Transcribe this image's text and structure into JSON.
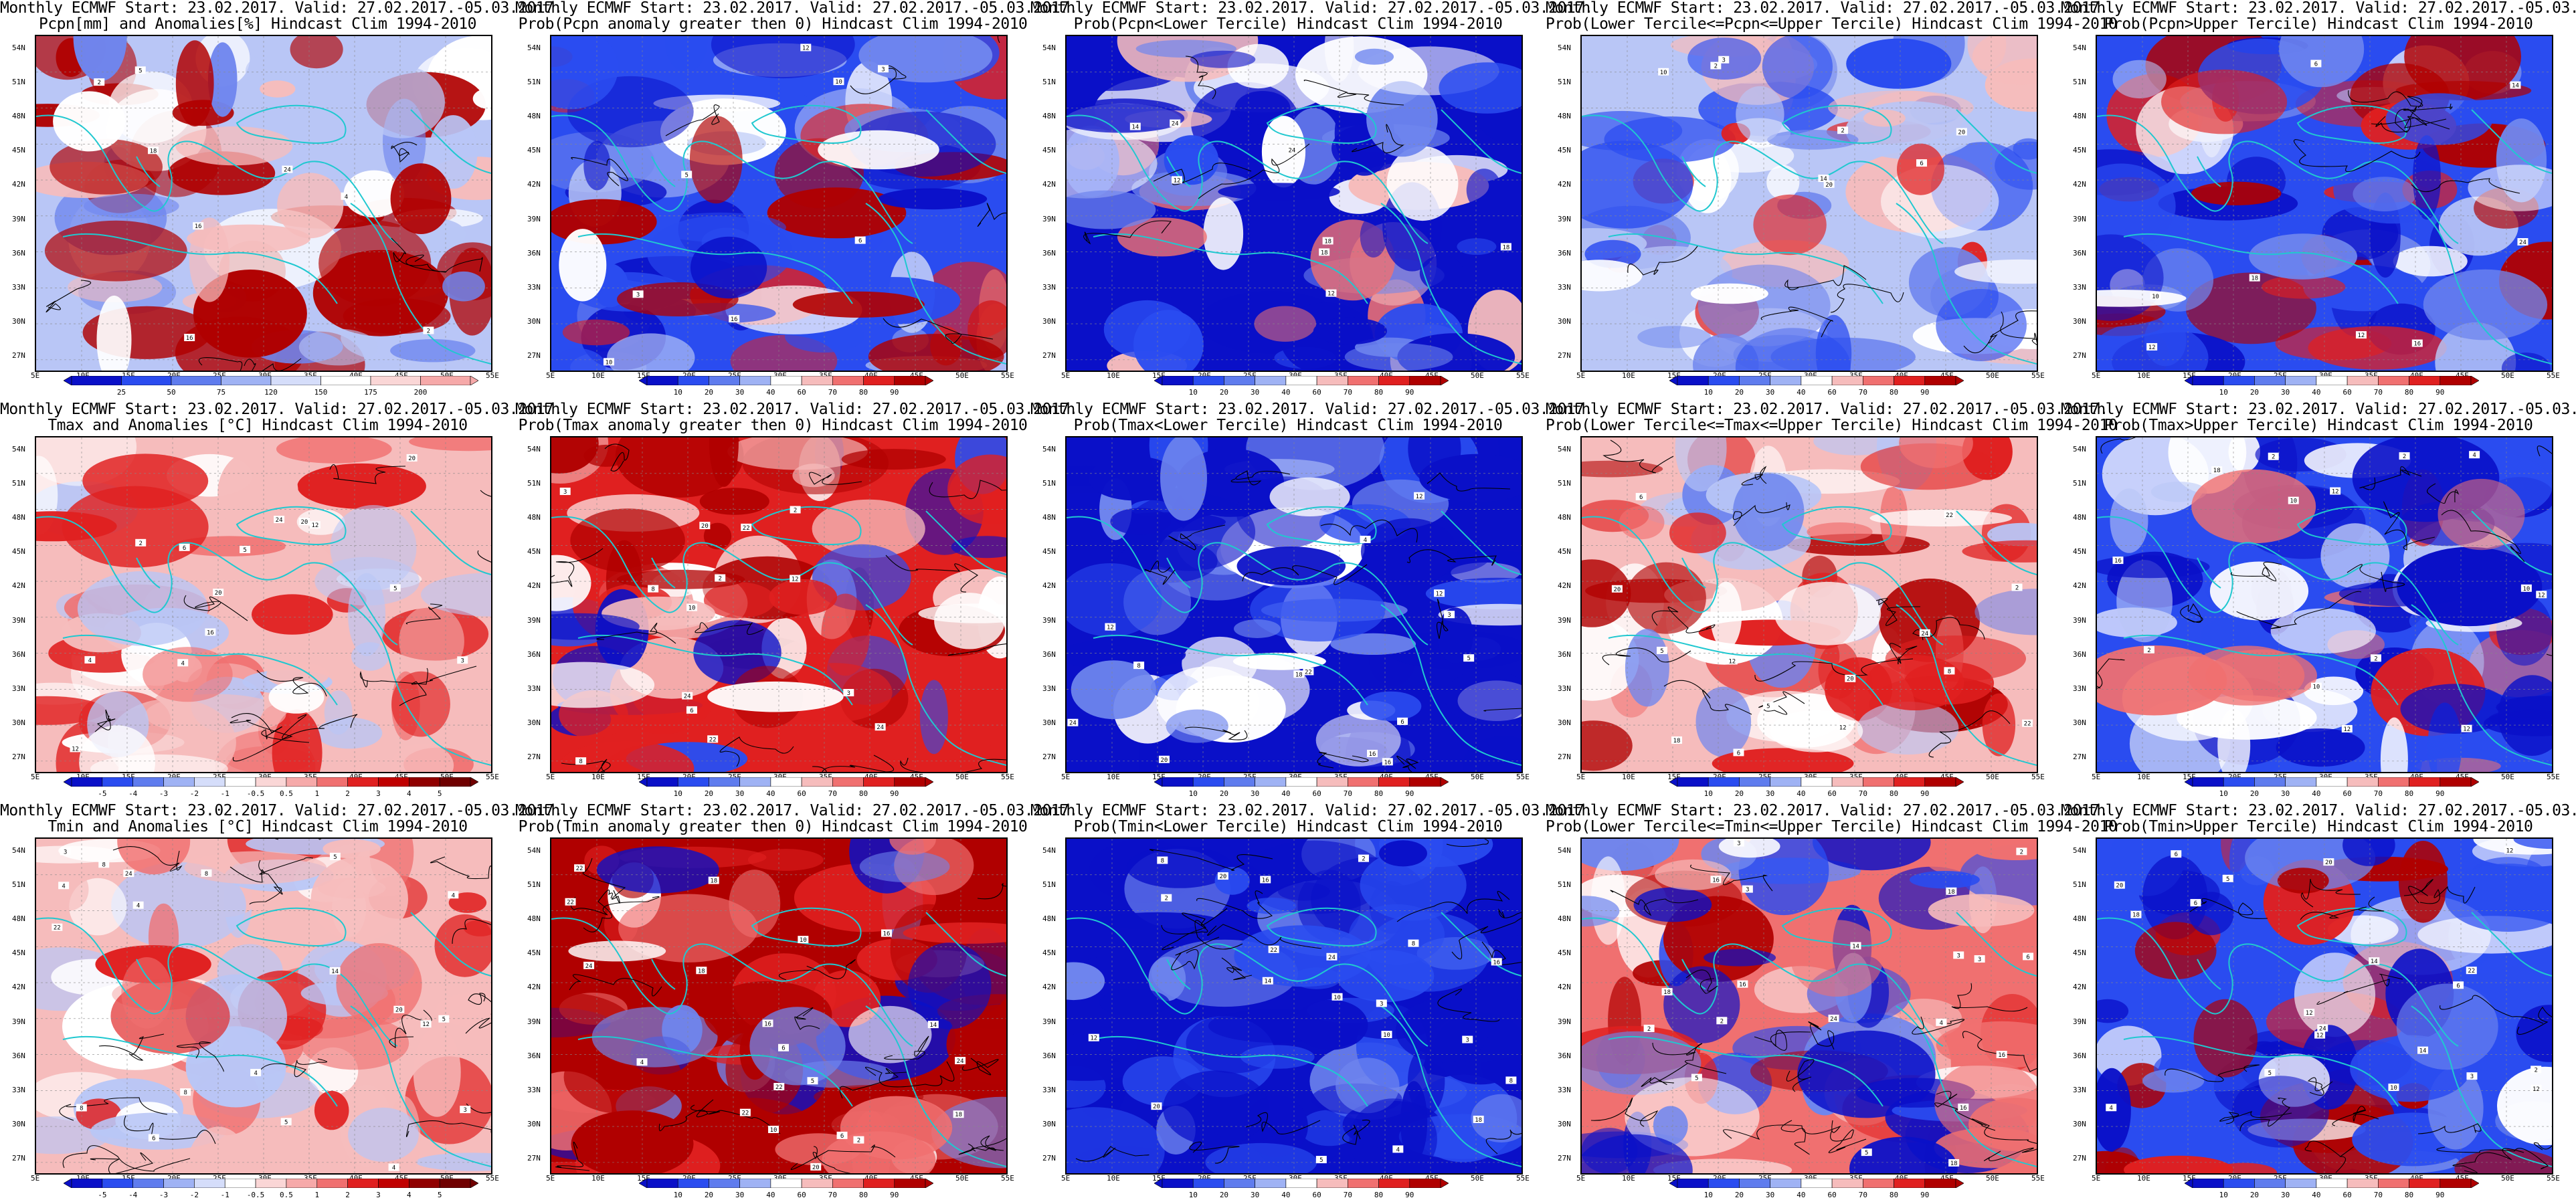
{
  "header_line": "Monthly ECMWF Start: 23.02.2017. Valid: 27.02.2017.-05.03.2017.",
  "lat_labels": [
    "54N",
    "51N",
    "48N",
    "45N",
    "42N",
    "39N",
    "36N",
    "33N",
    "30N",
    "27N"
  ],
  "lon_labels": [
    "5E",
    "10E",
    "15E",
    "20E",
    "25E",
    "30E",
    "35E",
    "40E",
    "45E",
    "50E",
    "55E"
  ],
  "colors": {
    "deep_blue": "#0a10c8",
    "blue": "#2a4cf0",
    "mid_blue": "#6f86ee",
    "light_blue": "#b9c6f6",
    "white": "#ffffff",
    "light_red": "#f6bcbc",
    "mid_red": "#f07070",
    "red": "#e02020",
    "dark_red": "#b00000",
    "coast": "#20c8d0",
    "contour": "#000000"
  },
  "rows": [
    {
      "variable": "Pcpn",
      "panels": [
        {
          "subtitle": "Pcpn[mm] and Anomalies[%] Hindcast Clim 1994-2010",
          "colorbar": [
            "25",
            "50",
            "75",
            "120",
            "150",
            "175",
            "200"
          ],
          "colorbar_kind": "anomaly"
        },
        {
          "subtitle": "Prob(Pcpn anomaly greater then 0) Hindcast Clim 1994-2010",
          "colorbar": [
            "10",
            "20",
            "30",
            "40",
            "60",
            "70",
            "80",
            "90"
          ],
          "colorbar_kind": "prob"
        },
        {
          "subtitle": "Prob(Pcpn<Lower Tercile) Hindcast Clim 1994-2010",
          "colorbar": [
            "10",
            "20",
            "30",
            "40",
            "60",
            "70",
            "80",
            "90"
          ],
          "colorbar_kind": "prob"
        },
        {
          "subtitle": "Prob(Lower Tercile<=Pcpn<=Upper Tercile) Hindcast Clim 1994-2010",
          "colorbar": [
            "10",
            "20",
            "30",
            "40",
            "60",
            "70",
            "80",
            "90"
          ],
          "colorbar_kind": "prob"
        },
        {
          "subtitle": "Prob(Pcpn>Upper Tercile) Hindcast Clim 1994-2010",
          "colorbar": [
            "10",
            "20",
            "30",
            "40",
            "60",
            "70",
            "80",
            "90"
          ],
          "colorbar_kind": "prob"
        }
      ]
    },
    {
      "variable": "Tmax",
      "panels": [
        {
          "subtitle": "Tmax and Anomalies [°C] Hindcast Clim 1994-2010",
          "colorbar": [
            "-5",
            "-4",
            "-3",
            "-2",
            "-1",
            "-0.5",
            "0.5",
            "1",
            "2",
            "3",
            "4",
            "5"
          ],
          "colorbar_kind": "anomaly"
        },
        {
          "subtitle": "Prob(Tmax anomaly greater then 0) Hindcast Clim 1994-2010",
          "colorbar": [
            "10",
            "20",
            "30",
            "40",
            "60",
            "70",
            "80",
            "90"
          ],
          "colorbar_kind": "prob"
        },
        {
          "subtitle": "Prob(Tmax<Lower Tercile) Hindcast Clim 1994-2010",
          "colorbar": [
            "10",
            "20",
            "30",
            "40",
            "60",
            "70",
            "80",
            "90"
          ],
          "colorbar_kind": "prob"
        },
        {
          "subtitle": "Prob(Lower Tercile<=Tmax<=Upper Tercile) Hindcast Clim 1994-2010",
          "colorbar": [
            "10",
            "20",
            "30",
            "40",
            "60",
            "70",
            "80",
            "90"
          ],
          "colorbar_kind": "prob"
        },
        {
          "subtitle": "Prob(Tmax>Upper Tercile) Hindcast Clim 1994-2010",
          "colorbar": [
            "10",
            "20",
            "30",
            "40",
            "60",
            "70",
            "80",
            "90"
          ],
          "colorbar_kind": "prob"
        }
      ]
    },
    {
      "variable": "Tmin",
      "panels": [
        {
          "subtitle": "Tmin and Anomalies [°C] Hindcast Clim 1994-2010",
          "colorbar": [
            "-5",
            "-4",
            "-3",
            "-2",
            "-1",
            "-0.5",
            "0.5",
            "1",
            "2",
            "3",
            "4",
            "5"
          ],
          "colorbar_kind": "anomaly"
        },
        {
          "subtitle": "Prob(Tmin anomaly greater then 0) Hindcast Clim 1994-2010",
          "colorbar": [
            "10",
            "20",
            "30",
            "40",
            "60",
            "70",
            "80",
            "90"
          ],
          "colorbar_kind": "prob"
        },
        {
          "subtitle": "Prob(Tmin<Lower Tercile) Hindcast Clim 1994-2010",
          "colorbar": [
            "10",
            "20",
            "30",
            "40",
            "60",
            "70",
            "80",
            "90"
          ],
          "colorbar_kind": "prob"
        },
        {
          "subtitle": "Prob(Lower Tercile<=Tmin<=Upper Tercile) Hindcast Clim 1994-2010",
          "colorbar": [
            "10",
            "20",
            "30",
            "40",
            "60",
            "70",
            "80",
            "90"
          ],
          "colorbar_kind": "prob"
        },
        {
          "subtitle": "Prob(Tmin>Upper Tercile) Hindcast Clim 1994-2010",
          "colorbar": [
            "10",
            "20",
            "30",
            "40",
            "60",
            "70",
            "80",
            "90"
          ],
          "colorbar_kind": "prob"
        }
      ]
    }
  ]
}
